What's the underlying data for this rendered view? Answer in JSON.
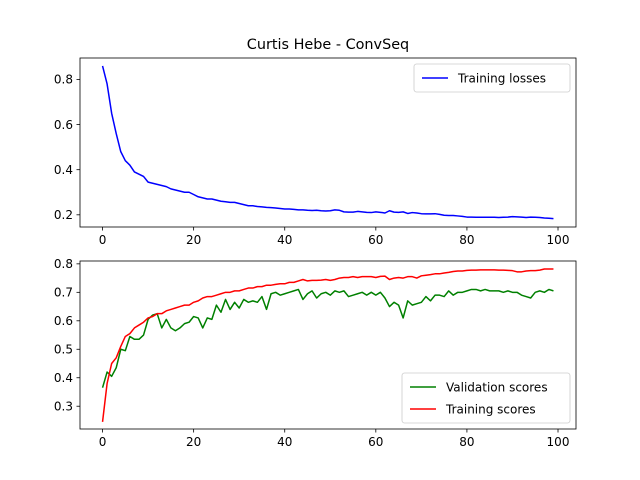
{
  "figure": {
    "title": "Curtis Hebe - ConvSeq"
  },
  "chart_data": [
    {
      "type": "line",
      "title": "",
      "xlabel": "",
      "ylabel": "",
      "xlim": [
        -4.95,
        103.95
      ],
      "ylim": [
        0.146,
        0.895
      ],
      "xticks": [
        0,
        20,
        40,
        60,
        80,
        100
      ],
      "yticks": [
        0.2,
        0.4,
        0.6,
        0.8
      ],
      "grid": false,
      "legend_position": "top-right",
      "series": [
        {
          "name": "Training losses",
          "color": "#0000ff",
          "x": [
            0,
            1,
            2,
            3,
            4,
            5,
            6,
            7,
            8,
            9,
            10,
            11,
            12,
            13,
            14,
            15,
            16,
            17,
            18,
            19,
            20,
            21,
            22,
            23,
            24,
            25,
            26,
            27,
            28,
            29,
            30,
            31,
            32,
            33,
            34,
            35,
            36,
            37,
            38,
            39,
            40,
            41,
            42,
            43,
            44,
            45,
            46,
            47,
            48,
            49,
            50,
            51,
            52,
            53,
            54,
            55,
            56,
            57,
            58,
            59,
            60,
            61,
            62,
            63,
            64,
            65,
            66,
            67,
            68,
            69,
            70,
            71,
            72,
            73,
            74,
            75,
            76,
            77,
            78,
            79,
            80,
            81,
            82,
            83,
            84,
            85,
            86,
            87,
            88,
            89,
            90,
            91,
            92,
            93,
            94,
            95,
            96,
            97,
            98,
            99
          ],
          "values": [
            0.86,
            0.78,
            0.65,
            0.56,
            0.48,
            0.44,
            0.42,
            0.39,
            0.38,
            0.37,
            0.345,
            0.34,
            0.335,
            0.33,
            0.325,
            0.315,
            0.31,
            0.305,
            0.3,
            0.3,
            0.29,
            0.28,
            0.275,
            0.27,
            0.27,
            0.265,
            0.26,
            0.258,
            0.255,
            0.255,
            0.25,
            0.245,
            0.24,
            0.24,
            0.237,
            0.235,
            0.233,
            0.232,
            0.23,
            0.228,
            0.226,
            0.226,
            0.224,
            0.222,
            0.222,
            0.22,
            0.219,
            0.22,
            0.218,
            0.217,
            0.218,
            0.222,
            0.22,
            0.213,
            0.212,
            0.212,
            0.215,
            0.213,
            0.211,
            0.21,
            0.213,
            0.211,
            0.208,
            0.218,
            0.212,
            0.211,
            0.213,
            0.206,
            0.21,
            0.208,
            0.205,
            0.204,
            0.204,
            0.205,
            0.202,
            0.198,
            0.197,
            0.197,
            0.195,
            0.193,
            0.19,
            0.19,
            0.189,
            0.189,
            0.189,
            0.189,
            0.189,
            0.188,
            0.189,
            0.19,
            0.192,
            0.191,
            0.19,
            0.188,
            0.19,
            0.189,
            0.188,
            0.186,
            0.185,
            0.183
          ]
        }
      ]
    },
    {
      "type": "line",
      "title": "",
      "xlabel": "",
      "ylabel": "",
      "xlim": [
        -4.95,
        103.95
      ],
      "ylim": [
        0.22,
        0.81
      ],
      "xticks": [
        0,
        20,
        40,
        60,
        80,
        100
      ],
      "yticks": [
        0.3,
        0.4,
        0.5,
        0.6,
        0.7,
        0.8
      ],
      "grid": false,
      "legend_position": "bottom-right",
      "series": [
        {
          "name": "Validation scores",
          "color": "#008000",
          "x": [
            0,
            1,
            2,
            3,
            4,
            5,
            6,
            7,
            8,
            9,
            10,
            11,
            12,
            13,
            14,
            15,
            16,
            17,
            18,
            19,
            20,
            21,
            22,
            23,
            24,
            25,
            26,
            27,
            28,
            29,
            30,
            31,
            32,
            33,
            34,
            35,
            36,
            37,
            38,
            39,
            40,
            41,
            42,
            43,
            44,
            45,
            46,
            47,
            48,
            49,
            50,
            51,
            52,
            53,
            54,
            55,
            56,
            57,
            58,
            59,
            60,
            61,
            62,
            63,
            64,
            65,
            66,
            67,
            68,
            69,
            70,
            71,
            72,
            73,
            74,
            75,
            76,
            77,
            78,
            79,
            80,
            81,
            82,
            83,
            84,
            85,
            86,
            87,
            88,
            89,
            90,
            91,
            92,
            93,
            94,
            95,
            96,
            97,
            98,
            99
          ],
          "values": [
            0.365,
            0.42,
            0.405,
            0.435,
            0.5,
            0.495,
            0.545,
            0.535,
            0.535,
            0.55,
            0.605,
            0.62,
            0.625,
            0.575,
            0.605,
            0.575,
            0.565,
            0.575,
            0.59,
            0.595,
            0.615,
            0.61,
            0.575,
            0.61,
            0.605,
            0.655,
            0.63,
            0.675,
            0.64,
            0.665,
            0.645,
            0.675,
            0.665,
            0.67,
            0.665,
            0.685,
            0.64,
            0.695,
            0.7,
            0.69,
            0.695,
            0.7,
            0.705,
            0.71,
            0.675,
            0.695,
            0.705,
            0.68,
            0.695,
            0.7,
            0.69,
            0.705,
            0.7,
            0.705,
            0.685,
            0.69,
            0.695,
            0.7,
            0.69,
            0.7,
            0.69,
            0.7,
            0.68,
            0.65,
            0.665,
            0.655,
            0.61,
            0.67,
            0.655,
            0.66,
            0.665,
            0.685,
            0.67,
            0.69,
            0.69,
            0.685,
            0.705,
            0.69,
            0.7,
            0.7,
            0.705,
            0.71,
            0.71,
            0.705,
            0.71,
            0.705,
            0.705,
            0.705,
            0.7,
            0.705,
            0.7,
            0.7,
            0.69,
            0.685,
            0.68,
            0.7,
            0.705,
            0.7,
            0.71,
            0.705
          ]
        },
        {
          "name": "Training scores",
          "color": "#ff0000",
          "x": [
            0,
            1,
            2,
            3,
            4,
            5,
            6,
            7,
            8,
            9,
            10,
            11,
            12,
            13,
            14,
            15,
            16,
            17,
            18,
            19,
            20,
            21,
            22,
            23,
            24,
            25,
            26,
            27,
            28,
            29,
            30,
            31,
            32,
            33,
            34,
            35,
            36,
            37,
            38,
            39,
            40,
            41,
            42,
            43,
            44,
            45,
            46,
            47,
            48,
            49,
            50,
            51,
            52,
            53,
            54,
            55,
            56,
            57,
            58,
            59,
            60,
            61,
            62,
            63,
            64,
            65,
            66,
            67,
            68,
            69,
            70,
            71,
            72,
            73,
            74,
            75,
            76,
            77,
            78,
            79,
            80,
            81,
            82,
            83,
            84,
            85,
            86,
            87,
            88,
            89,
            90,
            91,
            92,
            93,
            94,
            95,
            96,
            97,
            98,
            99
          ],
          "values": [
            0.245,
            0.38,
            0.45,
            0.47,
            0.51,
            0.545,
            0.555,
            0.575,
            0.585,
            0.595,
            0.61,
            0.615,
            0.625,
            0.625,
            0.635,
            0.64,
            0.645,
            0.65,
            0.655,
            0.655,
            0.665,
            0.67,
            0.68,
            0.685,
            0.685,
            0.69,
            0.695,
            0.7,
            0.7,
            0.705,
            0.705,
            0.71,
            0.715,
            0.715,
            0.72,
            0.72,
            0.725,
            0.725,
            0.728,
            0.73,
            0.73,
            0.735,
            0.735,
            0.74,
            0.745,
            0.74,
            0.742,
            0.742,
            0.743,
            0.745,
            0.742,
            0.745,
            0.75,
            0.752,
            0.752,
            0.755,
            0.752,
            0.755,
            0.755,
            0.755,
            0.752,
            0.756,
            0.757,
            0.745,
            0.75,
            0.752,
            0.75,
            0.755,
            0.755,
            0.75,
            0.758,
            0.76,
            0.762,
            0.765,
            0.765,
            0.768,
            0.77,
            0.773,
            0.775,
            0.775,
            0.777,
            0.778,
            0.778,
            0.779,
            0.779,
            0.779,
            0.779,
            0.778,
            0.778,
            0.777,
            0.776,
            0.772,
            0.772,
            0.775,
            0.776,
            0.776,
            0.778,
            0.782,
            0.782,
            0.782
          ]
        }
      ]
    }
  ]
}
